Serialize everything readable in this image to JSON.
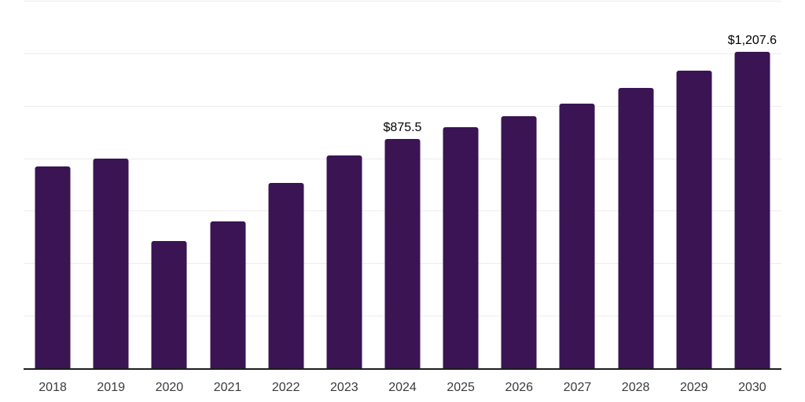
{
  "chart": {
    "background_color": "#ffffff",
    "bar_color": "#3A1453",
    "grid_color": "#ededed",
    "axis_color": "#1d1d1d",
    "tick_label_color": "#3a3a3a",
    "data_label_color": "#000000"
  },
  "chart_data": {
    "type": "bar",
    "categories": [
      "2018",
      "2019",
      "2020",
      "2021",
      "2022",
      "2023",
      "2024",
      "2025",
      "2026",
      "2027",
      "2028",
      "2029",
      "2030"
    ],
    "values": [
      772,
      802,
      487,
      563,
      709,
      815,
      875.5,
      920,
      964,
      1012,
      1070,
      1137,
      1207.6
    ],
    "data_labels": [
      "",
      "",
      "",
      "",
      "",
      "",
      "$875.5",
      "",
      "",
      "",
      "",
      "",
      "$1,207.6"
    ],
    "xlabel": "",
    "ylabel": "",
    "ylim": [
      0,
      1400
    ],
    "gridline_step": 200,
    "grid": true,
    "legend": false,
    "y_axis_ticks_visible": false
  }
}
